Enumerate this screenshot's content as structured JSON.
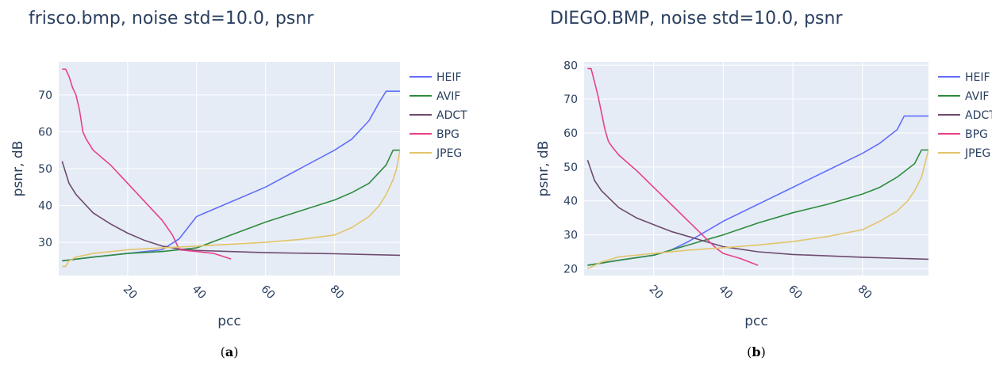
{
  "chart_data": [
    {
      "type": "line",
      "title": "frisco.bmp, noise std=10.0, psnr",
      "xlabel": "pcc",
      "ylabel": "psnr, dB",
      "caption_letter": "a",
      "xlim": [
        0,
        99
      ],
      "ylim": [
        21,
        79
      ],
      "xticks": [
        20,
        40,
        60,
        80
      ],
      "yticks": [
        30,
        40,
        50,
        60,
        70
      ],
      "grid": true,
      "legend_position": "right",
      "series": [
        {
          "name": "HEIF",
          "color": "#636efa",
          "x": [
            1,
            10,
            20,
            30,
            35,
            40,
            50,
            60,
            70,
            80,
            85,
            90,
            93,
            95,
            97,
            99
          ],
          "y": [
            25,
            26,
            27,
            28,
            31,
            37,
            41,
            45,
            50,
            55,
            58,
            63,
            68,
            71,
            71,
            71
          ]
        },
        {
          "name": "AVIF",
          "color": "#2e8b3d",
          "x": [
            1,
            10,
            20,
            30,
            40,
            50,
            60,
            70,
            80,
            85,
            90,
            95,
            97,
            99
          ],
          "y": [
            25,
            26,
            27,
            27.5,
            28.5,
            32,
            35.5,
            38.5,
            41.5,
            43.5,
            46,
            51,
            55,
            55
          ]
        },
        {
          "name": "ADCT",
          "color": "#6e4a6e",
          "x": [
            1,
            3,
            5,
            10,
            15,
            20,
            25,
            30,
            35,
            40,
            50,
            60,
            80,
            99
          ],
          "y": [
            52,
            46,
            43,
            38,
            35,
            32.5,
            30.5,
            29,
            28.2,
            27.8,
            27.5,
            27.2,
            26.9,
            26.5
          ]
        },
        {
          "name": "BPG",
          "color": "#e8418a",
          "x": [
            1,
            2,
            3,
            4,
            5,
            6,
            7,
            8,
            10,
            15,
            20,
            25,
            30,
            33,
            35,
            40,
            45,
            50
          ],
          "y": [
            77,
            77,
            75,
            72,
            70,
            66,
            60,
            58,
            55,
            51,
            46,
            41,
            36,
            32,
            28,
            27.5,
            27,
            25.5
          ]
        },
        {
          "name": "JPEG",
          "color": "#e3c46a",
          "x": [
            1,
            2,
            3,
            5,
            10,
            20,
            30,
            40,
            50,
            60,
            70,
            80,
            85,
            90,
            93,
            95,
            97,
            98,
            99
          ],
          "y": [
            23.5,
            23.5,
            25,
            26,
            27,
            28,
            28.5,
            29,
            29.5,
            30,
            30.8,
            32,
            34,
            37,
            40,
            43,
            47,
            50,
            55
          ]
        }
      ]
    },
    {
      "type": "line",
      "title": "DIEGO.BMP, noise std=10.0, psnr",
      "xlabel": "pcc",
      "ylabel": "psnr, dB",
      "caption_letter": "b",
      "xlim": [
        0,
        99
      ],
      "ylim": [
        18,
        81
      ],
      "xticks": [
        20,
        40,
        60,
        80
      ],
      "yticks": [
        20,
        30,
        40,
        50,
        60,
        70,
        80
      ],
      "grid": true,
      "legend_position": "right",
      "series": [
        {
          "name": "HEIF",
          "color": "#636efa",
          "x": [
            1,
            10,
            20,
            25,
            30,
            35,
            40,
            50,
            60,
            70,
            80,
            85,
            90,
            92,
            95,
            99
          ],
          "y": [
            21,
            22.5,
            24,
            25.5,
            28,
            31,
            34,
            39,
            44,
            49,
            54,
            57,
            61,
            65,
            65,
            65
          ]
        },
        {
          "name": "AVIF",
          "color": "#2e8b3d",
          "x": [
            1,
            10,
            20,
            30,
            40,
            50,
            60,
            70,
            80,
            85,
            90,
            95,
            97,
            99
          ],
          "y": [
            21,
            22.5,
            24,
            27,
            30,
            33.5,
            36.5,
            39,
            42,
            44,
            47,
            51,
            55,
            55
          ]
        },
        {
          "name": "ADCT",
          "color": "#6e4a6e",
          "x": [
            1,
            3,
            5,
            10,
            15,
            20,
            25,
            30,
            35,
            40,
            50,
            60,
            80,
            99
          ],
          "y": [
            52,
            46,
            43,
            38,
            35,
            33,
            31,
            29.5,
            28,
            26.5,
            25,
            24.2,
            23.4,
            22.8
          ]
        },
        {
          "name": "BPG",
          "color": "#e8418a",
          "x": [
            1,
            2,
            3,
            4,
            5,
            6,
            7,
            8,
            10,
            15,
            20,
            25,
            30,
            35,
            38,
            40,
            45,
            50
          ],
          "y": [
            79,
            79,
            75,
            71,
            66,
            61,
            57.5,
            56,
            53.5,
            49,
            44,
            39,
            34,
            29,
            26,
            24.5,
            23,
            21
          ]
        },
        {
          "name": "JPEG",
          "color": "#e3c46a",
          "x": [
            1,
            3,
            5,
            10,
            20,
            30,
            40,
            50,
            60,
            70,
            80,
            85,
            90,
            93,
            95,
            97,
            99
          ],
          "y": [
            20,
            21,
            22,
            23.5,
            24.5,
            25.5,
            26.2,
            27,
            28,
            29.5,
            31.5,
            34,
            37,
            40,
            43,
            47,
            55
          ]
        }
      ]
    }
  ]
}
